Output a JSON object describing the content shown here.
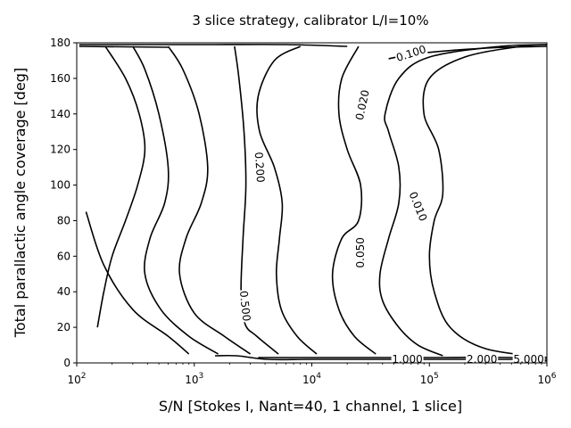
{
  "chart_data": {
    "type": "contour",
    "title": "3 slice strategy, calibrator L/I=10%",
    "xlabel": "S/N [Stokes I, Nant=40, 1 channel, 1 slice]",
    "ylabel": "Total parallactic angle coverage [deg]",
    "x_scale": "log",
    "xlim": [
      100,
      1000000
    ],
    "ylim": [
      0,
      180
    ],
    "x_ticks": [
      {
        "value": 100,
        "base": "10",
        "exp": "2"
      },
      {
        "value": 1000,
        "base": "10",
        "exp": "3"
      },
      {
        "value": 10000,
        "base": "10",
        "exp": "4"
      },
      {
        "value": 100000,
        "base": "10",
        "exp": "5"
      },
      {
        "value": 1000000,
        "base": "10",
        "exp": "6"
      }
    ],
    "y_ticks": [
      0,
      20,
      40,
      60,
      80,
      100,
      120,
      140,
      160,
      180
    ],
    "grid": false,
    "contours": [
      {
        "level": "",
        "points": [
          [
            150,
            20
          ],
          [
            170,
            40
          ],
          [
            200,
            60
          ],
          [
            260,
            80
          ],
          [
            330,
            100
          ],
          [
            380,
            120
          ],
          [
            340,
            140
          ],
          [
            260,
            160
          ],
          [
            175,
            178
          ]
        ]
      },
      {
        "level": "",
        "points": [
          [
            900,
            5
          ],
          [
            600,
            15
          ],
          [
            300,
            30
          ],
          [
            170,
            55
          ],
          [
            120,
            85
          ]
        ]
      },
      {
        "level": "",
        "points": [
          [
            1600,
            5
          ],
          [
            900,
            15
          ],
          [
            520,
            30
          ],
          [
            380,
            50
          ],
          [
            420,
            70
          ],
          [
            560,
            90
          ],
          [
            600,
            110
          ],
          [
            500,
            140
          ],
          [
            380,
            165
          ],
          [
            300,
            178
          ]
        ]
      },
      {
        "level": "",
        "points": [
          [
            3000,
            5
          ],
          [
            1800,
            15
          ],
          [
            1000,
            28
          ],
          [
            750,
            50
          ],
          [
            850,
            70
          ],
          [
            1150,
            90
          ],
          [
            1300,
            110
          ],
          [
            1100,
            140
          ],
          [
            800,
            165
          ],
          [
            600,
            178
          ]
        ]
      },
      {
        "level": "0.500",
        "points": [
          [
            5200,
            5
          ],
          [
            3400,
            15
          ],
          [
            2700,
            22
          ],
          [
            2500,
            40
          ],
          [
            2600,
            70
          ],
          [
            2750,
            100
          ],
          [
            2650,
            130
          ],
          [
            2400,
            160
          ],
          [
            2200,
            178
          ]
        ]
      },
      {
        "level": "0.200",
        "points": [
          [
            11000,
            5
          ],
          [
            7500,
            15
          ],
          [
            5500,
            30
          ],
          [
            5000,
            50
          ],
          [
            5300,
            70
          ],
          [
            5600,
            90
          ],
          [
            4800,
            110
          ],
          [
            3600,
            130
          ],
          [
            3500,
            150
          ],
          [
            4800,
            170
          ],
          [
            8000,
            178
          ]
        ]
      },
      {
        "level": "0.050",
        "points": [
          [
            35000,
            5
          ],
          [
            23000,
            15
          ],
          [
            17000,
            30
          ],
          [
            15000,
            50
          ],
          [
            18000,
            70
          ],
          [
            25000,
            80
          ],
          [
            26000,
            100
          ],
          [
            20000,
            120
          ],
          [
            17000,
            140
          ],
          [
            18000,
            160
          ],
          [
            25000,
            178
          ]
        ]
      },
      {
        "level": "0.020",
        "points": [
          [
            130000,
            4
          ],
          [
            80000,
            10
          ],
          [
            55000,
            20
          ],
          [
            40000,
            35
          ],
          [
            38000,
            50
          ],
          [
            45000,
            70
          ],
          [
            55000,
            90
          ],
          [
            55000,
            110
          ],
          [
            45000,
            130
          ],
          [
            42000,
            140
          ],
          [
            55000,
            160
          ],
          [
            100000,
            172
          ],
          [
            400000,
            178
          ],
          [
            1000000,
            179
          ]
        ]
      },
      {
        "level": "0.010",
        "points": [
          [
            1000000,
            3
          ],
          [
            300000,
            8
          ],
          [
            150000,
            20
          ],
          [
            110000,
            40
          ],
          [
            100000,
            60
          ],
          [
            110000,
            80
          ],
          [
            130000,
            95
          ],
          [
            120000,
            120
          ],
          [
            90000,
            140
          ],
          [
            100000,
            160
          ],
          [
            200000,
            172
          ],
          [
            600000,
            178
          ],
          [
            1000000,
            179
          ]
        ]
      },
      {
        "level": "0.100",
        "points": [
          [
            1000000,
            178
          ],
          [
            300000,
            177
          ],
          [
            80000,
            174
          ],
          [
            45000,
            171
          ]
        ]
      },
      {
        "level": "",
        "points": [
          [
            105,
            179
          ],
          [
            180,
            179
          ],
          [
            400,
            179
          ],
          [
            1500,
            179
          ],
          [
            6000,
            179
          ],
          [
            20000,
            178
          ]
        ]
      },
      {
        "level": "",
        "points": [
          [
            105,
            178
          ],
          [
            600,
            177.5
          ]
        ]
      },
      {
        "level": "1.000",
        "points": [
          [
            1500,
            4
          ],
          [
            2300,
            4
          ],
          [
            4200,
            2
          ],
          [
            10000,
            2
          ],
          [
            40000,
            2
          ],
          [
            200000,
            2
          ],
          [
            1000000,
            2
          ]
        ]
      },
      {
        "level": "2.000",
        "points": [
          [
            3500,
            3
          ],
          [
            20000,
            3
          ],
          [
            120000,
            3
          ],
          [
            500000,
            3
          ],
          [
            1000000,
            1
          ]
        ]
      }
    ],
    "contour_labels": [
      {
        "text": "0.100",
        "x": 70000,
        "y": 174,
        "rotate": -18
      },
      {
        "text": "0.020",
        "x": 27000,
        "y": 145,
        "rotate": -78
      },
      {
        "text": "0.200",
        "x": 3600,
        "y": 110,
        "rotate": 86
      },
      {
        "text": "0.010",
        "x": 80000,
        "y": 88,
        "rotate": 68
      },
      {
        "text": "0.050",
        "x": 26000,
        "y": 62,
        "rotate": -90
      },
      {
        "text": "0.500",
        "x": 2700,
        "y": 32,
        "rotate": 84
      },
      {
        "text": "1.000",
        "x": 65000,
        "y": 2,
        "rotate": 0
      },
      {
        "text": "2.000",
        "x": 280000,
        "y": 2,
        "rotate": 0
      },
      {
        "text": "5.000",
        "x": 700000,
        "y": 2,
        "rotate": 0
      }
    ]
  }
}
